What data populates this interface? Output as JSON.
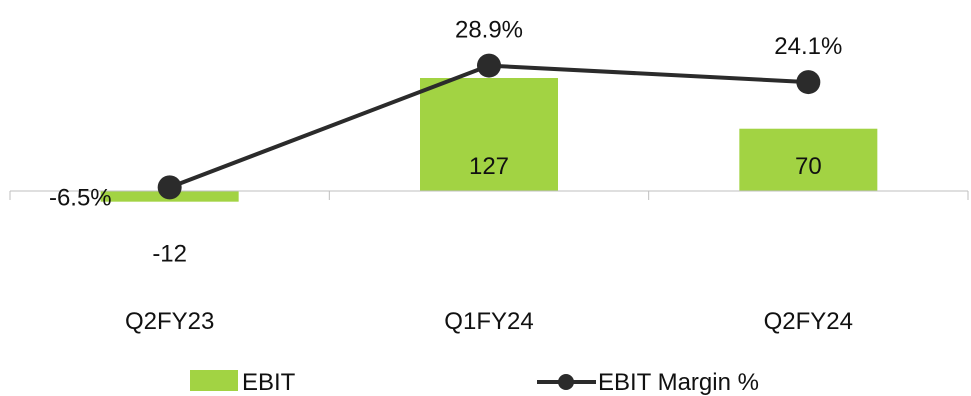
{
  "chart_data": {
    "type": "bar",
    "categories": [
      "Q2FY23",
      "Q1FY24",
      "Q2FY24"
    ],
    "series": [
      {
        "name": "EBIT",
        "type": "bar",
        "values": [
          -12,
          127,
          70
        ],
        "color": "#a2d343"
      },
      {
        "name": "EBIT Margin %",
        "type": "line",
        "values": [
          -6.5,
          28.9,
          24.1
        ],
        "color": "#2b2b2b"
      }
    ],
    "bar_labels": [
      "-12",
      "127",
      "70"
    ],
    "line_labels": [
      "-6.5%",
      "28.9%",
      "24.1%"
    ],
    "legend": {
      "position": "bottom",
      "entries": [
        "EBIT",
        "EBIT Margin %"
      ]
    },
    "grid": false,
    "title": "",
    "xlabel": "",
    "ylabel": ""
  }
}
